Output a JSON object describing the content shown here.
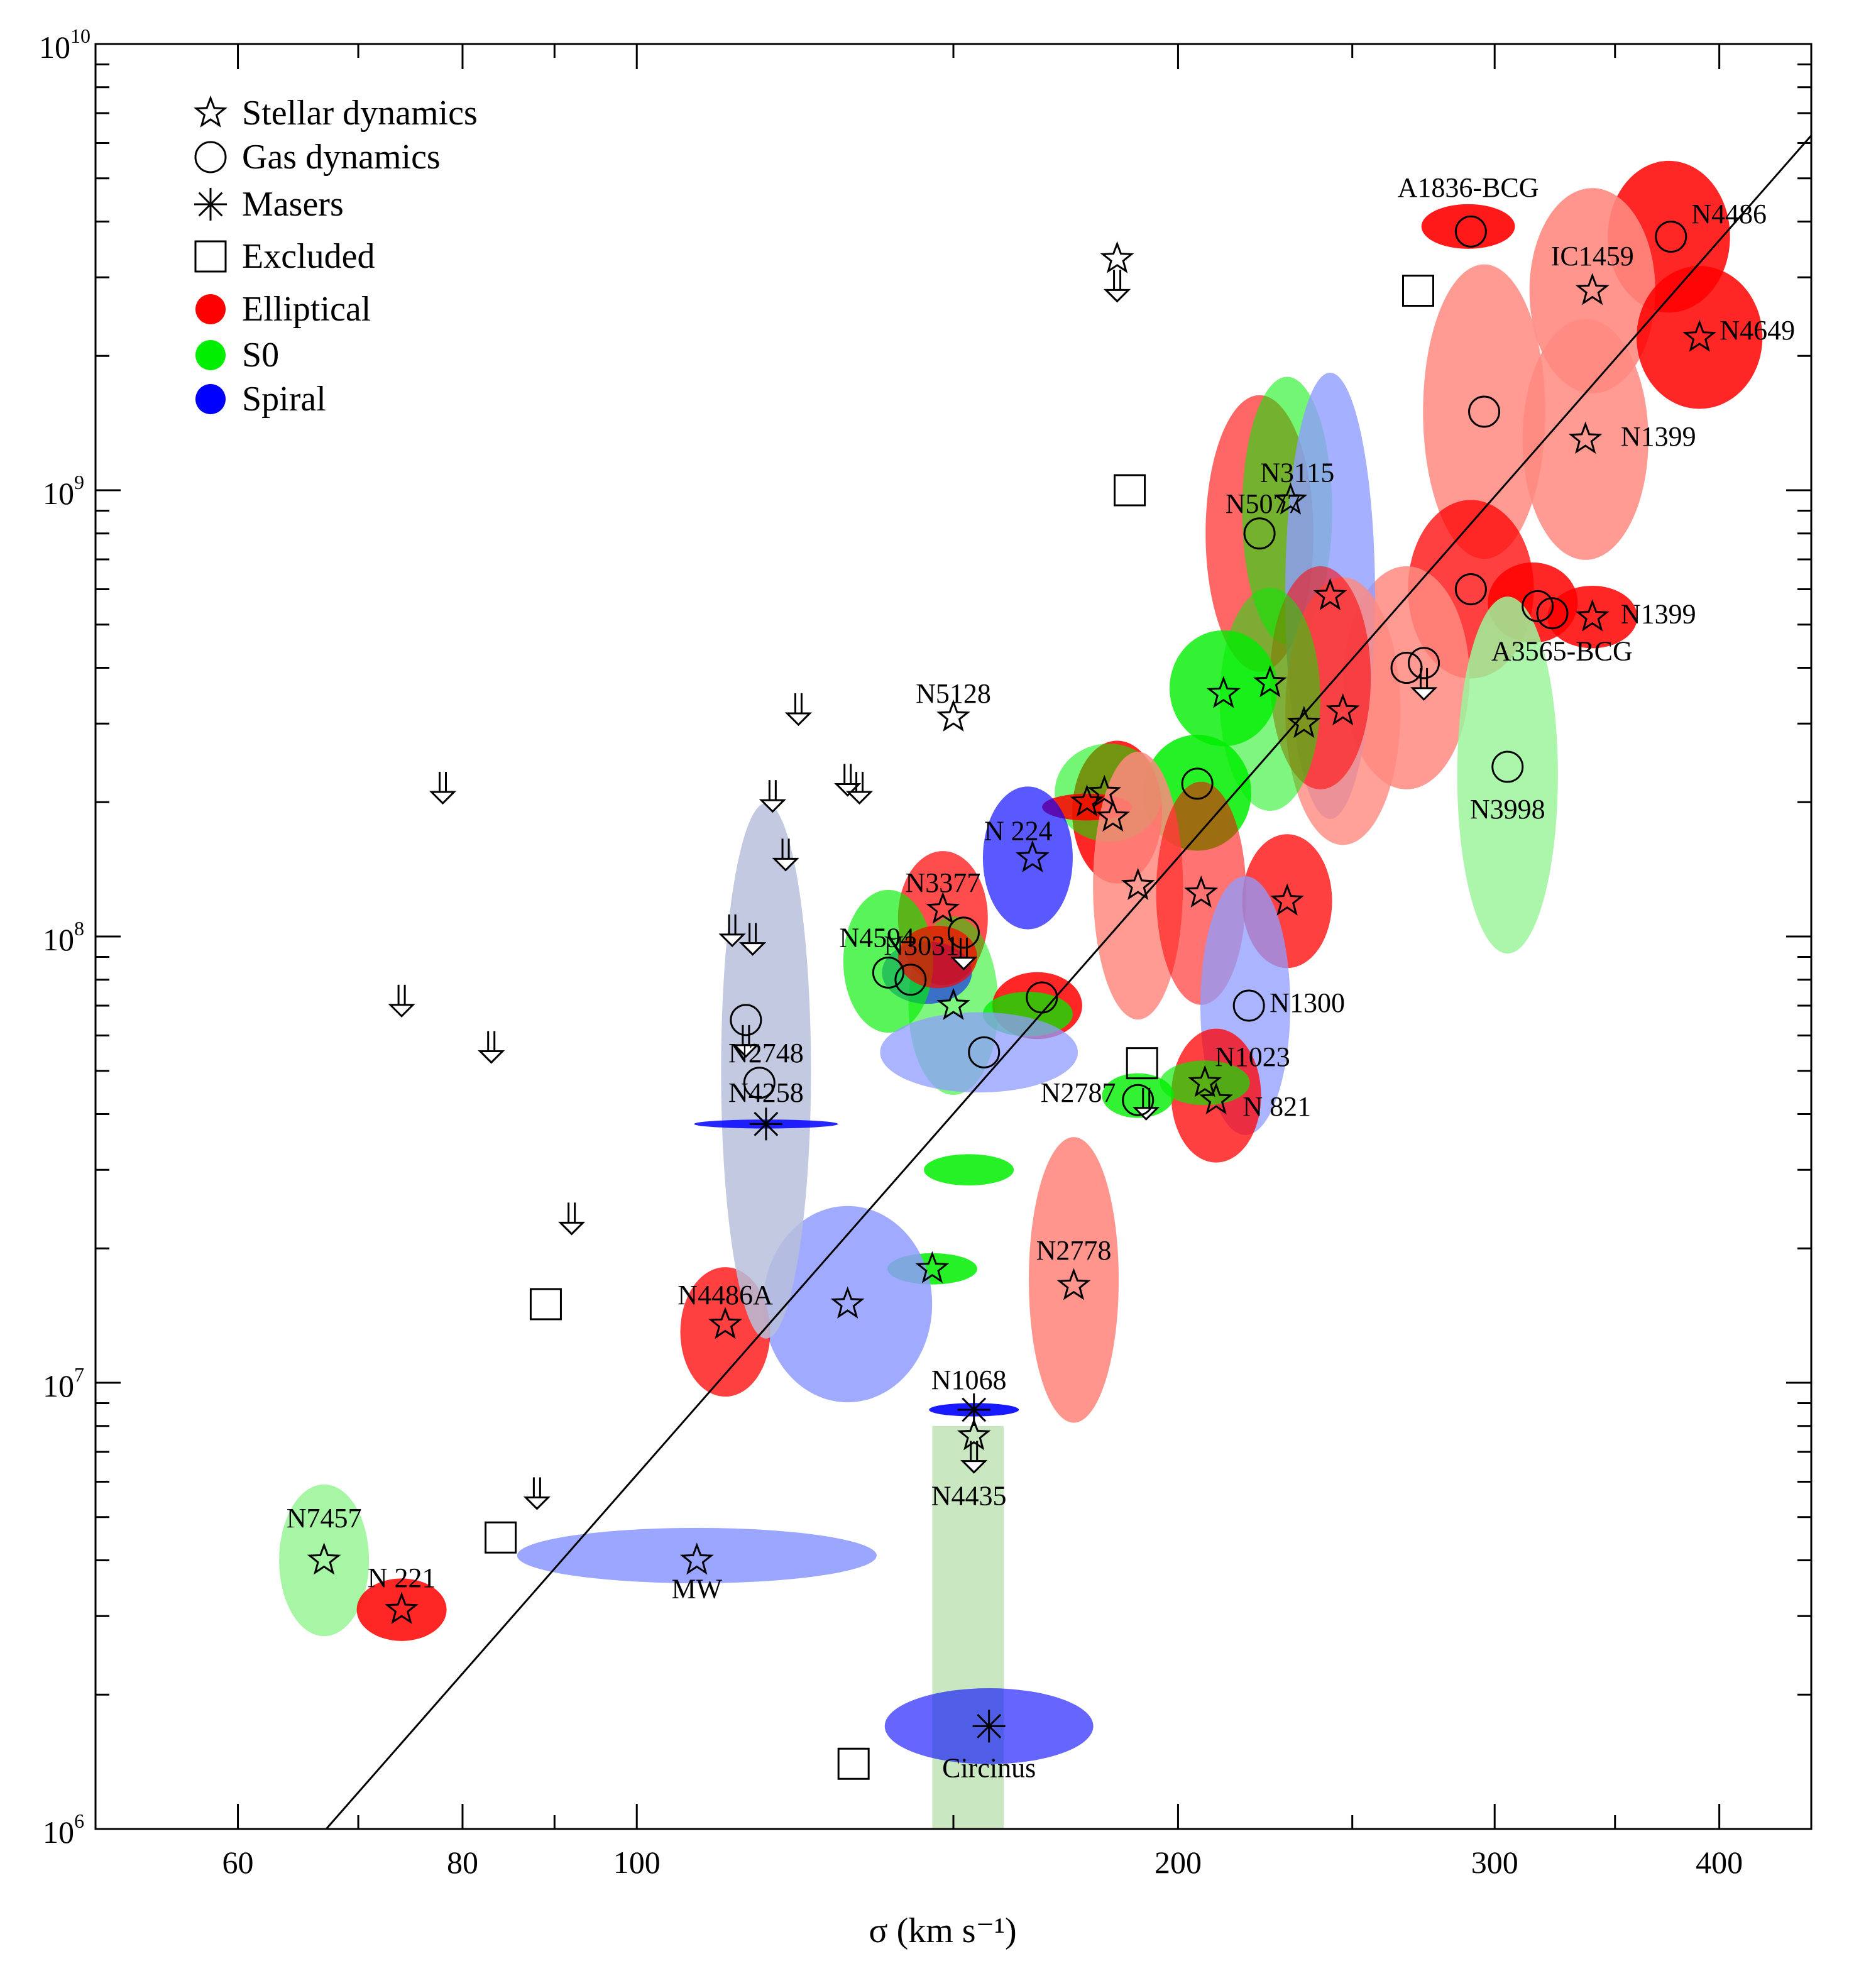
{
  "chart_data": {
    "type": "scatter",
    "title": "",
    "xlabel": "σ (km s⁻¹)",
    "ylabel": "",
    "x_scale": "log",
    "y_scale": "log",
    "xlim": [
      50,
      450
    ],
    "ylim": [
      1000000,
      10000000000
    ],
    "x_tick_labels": [
      {
        "value": 60,
        "label": "60"
      },
      {
        "value": 80,
        "label": "80"
      },
      {
        "value": 100,
        "label": "100"
      },
      {
        "value": 200,
        "label": "200"
      },
      {
        "value": 300,
        "label": "300"
      },
      {
        "value": 400,
        "label": "400"
      }
    ],
    "y_tick_labels": [
      {
        "value": 1000000,
        "base": "10",
        "exp": "6"
      },
      {
        "value": 10000000,
        "base": "10",
        "exp": "7"
      },
      {
        "value": 100000000,
        "base": "10",
        "exp": "8"
      },
      {
        "value": 1000000000,
        "base": "10",
        "exp": "9"
      },
      {
        "value": 10000000000,
        "base": "10",
        "exp": "10"
      }
    ],
    "legend": {
      "placement": "top-left",
      "entries": [
        {
          "marker": "star",
          "label": "Stellar dynamics"
        },
        {
          "marker": "circle",
          "label": "Gas dynamics"
        },
        {
          "marker": "asterisk",
          "label": "Masers"
        },
        {
          "marker": "square",
          "label": "Excluded"
        },
        {
          "marker": "dot",
          "color": "#ff0000",
          "label": "Elliptical"
        },
        {
          "marker": "dot",
          "color": "#00ee00",
          "label": "S0"
        },
        {
          "marker": "dot",
          "color": "#0000ff",
          "label": "Spiral"
        }
      ]
    },
    "colors": {
      "E": "#ff0000",
      "E_light": "#ff8a80",
      "S0": "#00ee00",
      "S0_light": "#9cf59c",
      "Sp": "#0000ff",
      "Sp_light": "#8f9cff",
      "Sp_pale": "#b7bfdc",
      "S0_band": "#c9e8c2"
    },
    "fit_line": {
      "x": [
        64,
        460
      ],
      "y": [
        800000,
        6900000000
      ]
    },
    "ellipses": [
      {
        "x": 290,
        "y": 3900000000,
        "sx": 0.026,
        "sy": 0.05,
        "color": "E",
        "opacity": 0.9
      },
      {
        "x": 375,
        "y": 3700000000,
        "sx": 0.034,
        "sy": 0.17,
        "color": "E",
        "opacity": 0.85
      },
      {
        "x": 340,
        "y": 2800000000,
        "sx": 0.035,
        "sy": 0.23,
        "color": "E_light",
        "opacity": 0.9
      },
      {
        "x": 390,
        "y": 2200000000,
        "sx": 0.035,
        "sy": 0.16,
        "color": "E",
        "opacity": 0.85
      },
      {
        "x": 296,
        "y": 1500000000,
        "sx": 0.034,
        "sy": 0.33,
        "color": "E_light",
        "opacity": 0.85
      },
      {
        "x": 337,
        "y": 1300000000,
        "sx": 0.035,
        "sy": 0.27,
        "color": "E_light",
        "opacity": 0.85
      },
      {
        "x": 291,
        "y": 600000000,
        "sx": 0.035,
        "sy": 0.2,
        "color": "E",
        "opacity": 0.75
      },
      {
        "x": 315,
        "y": 560000000,
        "sx": 0.025,
        "sy": 0.09,
        "color": "E",
        "opacity": 0.85
      },
      {
        "x": 340,
        "y": 520000000,
        "sx": 0.025,
        "sy": 0.07,
        "color": "E",
        "opacity": 0.85
      },
      {
        "x": 268,
        "y": 380000000,
        "sx": 0.035,
        "sy": 0.25,
        "color": "E_light",
        "opacity": 0.85
      },
      {
        "x": 305,
        "y": 230000000,
        "sx": 0.028,
        "sy": 0.4,
        "color": "S0_light",
        "opacity": 0.85
      },
      {
        "x": 222,
        "y": 800000000,
        "sx": 0.03,
        "sy": 0.31,
        "color": "E",
        "opacity": 0.6
      },
      {
        "x": 230,
        "y": 900000000,
        "sx": 0.025,
        "sy": 0.3,
        "color": "S0",
        "opacity": 0.55
      },
      {
        "x": 243,
        "y": 580000000,
        "sx": 0.025,
        "sy": 0.5,
        "color": "Sp_light",
        "opacity": 0.8
      },
      {
        "x": 247,
        "y": 320000000,
        "sx": 0.032,
        "sy": 0.3,
        "color": "E_light",
        "opacity": 0.8
      },
      {
        "x": 240,
        "y": 380000000,
        "sx": 0.028,
        "sy": 0.25,
        "color": "E",
        "opacity": 0.55
      },
      {
        "x": 225,
        "y": 340000000,
        "sx": 0.028,
        "sy": 0.25,
        "color": "S0",
        "opacity": 0.5
      },
      {
        "x": 212,
        "y": 360000000,
        "sx": 0.03,
        "sy": 0.13,
        "color": "S0",
        "opacity": 0.8
      },
      {
        "x": 205,
        "y": 210000000,
        "sx": 0.03,
        "sy": 0.13,
        "color": "S0",
        "opacity": 0.85
      },
      {
        "x": 185,
        "y": 190000000,
        "sx": 0.025,
        "sy": 0.16,
        "color": "E",
        "opacity": 0.85
      },
      {
        "x": 183,
        "y": 210000000,
        "sx": 0.03,
        "sy": 0.11,
        "color": "S0",
        "opacity": 0.55
      },
      {
        "x": 178,
        "y": 195000000,
        "sx": 0.025,
        "sy": 0.03,
        "color": "E",
        "opacity": 0.85
      },
      {
        "x": 190,
        "y": 130000000,
        "sx": 0.025,
        "sy": 0.3,
        "color": "E_light",
        "opacity": 0.85
      },
      {
        "x": 206,
        "y": 125000000,
        "sx": 0.025,
        "sy": 0.25,
        "color": "E",
        "opacity": 0.55
      },
      {
        "x": 230,
        "y": 120000000,
        "sx": 0.025,
        "sy": 0.15,
        "color": "E",
        "opacity": 0.75
      },
      {
        "x": 218,
        "y": 70000000,
        "sx": 0.025,
        "sy": 0.29,
        "color": "Sp_light",
        "opacity": 0.75
      },
      {
        "x": 210,
        "y": 44000000,
        "sx": 0.025,
        "sy": 0.15,
        "color": "E",
        "opacity": 0.75
      },
      {
        "x": 207,
        "y": 47000000,
        "sx": 0.025,
        "sy": 0.05,
        "color": "S0",
        "opacity": 0.65
      },
      {
        "x": 190,
        "y": 44000000,
        "sx": 0.02,
        "sy": 0.05,
        "color": "S0",
        "opacity": 0.8
      },
      {
        "x": 165,
        "y": 150000000,
        "sx": 0.025,
        "sy": 0.16,
        "color": "Sp",
        "opacity": 0.65
      },
      {
        "x": 148,
        "y": 110000000,
        "sx": 0.025,
        "sy": 0.15,
        "color": "E",
        "opacity": 0.7
      },
      {
        "x": 150,
        "y": 70000000,
        "sx": 0.025,
        "sy": 0.2,
        "color": "S0",
        "opacity": 0.5
      },
      {
        "x": 145,
        "y": 83000000,
        "sx": 0.025,
        "sy": 0.07,
        "color": "Sp",
        "opacity": 0.55
      },
      {
        "x": 138,
        "y": 88000000,
        "sx": 0.025,
        "sy": 0.16,
        "color": "S0",
        "opacity": 0.65
      },
      {
        "x": 147,
        "y": 90000000,
        "sx": 0.022,
        "sy": 0.07,
        "color": "E",
        "opacity": 0.7
      },
      {
        "x": 167,
        "y": 70000000,
        "sx": 0.025,
        "sy": 0.075,
        "color": "E",
        "opacity": 0.85
      },
      {
        "x": 165,
        "y": 67000000,
        "sx": 0.025,
        "sy": 0.05,
        "color": "S0",
        "opacity": 0.75
      },
      {
        "x": 155,
        "y": 55000000,
        "sx": 0.055,
        "sy": 0.09,
        "color": "Sp_light",
        "opacity": 0.75
      },
      {
        "x": 153,
        "y": 30000000,
        "sx": 0.025,
        "sy": 0.035,
        "color": "S0",
        "opacity": 0.85
      },
      {
        "x": 146,
        "y": 18000000,
        "sx": 0.025,
        "sy": 0.035,
        "color": "S0",
        "opacity": 0.85
      },
      {
        "x": 175,
        "y": 17000000,
        "sx": 0.025,
        "sy": 0.32,
        "color": "E_light",
        "opacity": 0.9
      },
      {
        "x": 131,
        "y": 15000000,
        "sx": 0.047,
        "sy": 0.22,
        "color": "Sp_light",
        "opacity": 0.85
      },
      {
        "x": 112,
        "y": 13000000,
        "sx": 0.025,
        "sy": 0.145,
        "color": "E",
        "opacity": 0.75
      },
      {
        "x": 118,
        "y": 50000000,
        "sx": 0.025,
        "sy": 0.6,
        "color": "Sp_pale",
        "opacity": 0.85
      },
      {
        "x": 118,
        "y": 38000000,
        "sx": 0.04,
        "sy": 0.01,
        "color": "Sp",
        "opacity": 0.85
      },
      {
        "x": 154,
        "y": 8700000,
        "sx": 0.025,
        "sy": 0.015,
        "color": "Sp",
        "opacity": 0.9
      },
      {
        "x": 108,
        "y": 4100000,
        "sx": 0.1,
        "sy": 0.062,
        "color": "Sp_light",
        "opacity": 0.9
      },
      {
        "x": 67,
        "y": 4000000,
        "sx": 0.025,
        "sy": 0.17,
        "color": "S0_light",
        "opacity": 0.9
      },
      {
        "x": 74,
        "y": 3100000,
        "sx": 0.025,
        "sy": 0.07,
        "color": "E",
        "opacity": 0.85
      },
      {
        "x": 157,
        "y": 1700000,
        "sx": 0.058,
        "sy": 0.085,
        "color": "Sp",
        "opacity": 0.6
      }
    ],
    "band": {
      "x0": 146,
      "x1": 160,
      "y0": 1000000,
      "y1": 8000000,
      "color": "S0_band"
    },
    "stars": [
      {
        "x": 185,
        "y": 3300000000
      },
      {
        "x": 340,
        "y": 2800000000
      },
      {
        "x": 390,
        "y": 2200000000
      },
      {
        "x": 337,
        "y": 1300000000
      },
      {
        "x": 231,
        "y": 950000000
      },
      {
        "x": 243,
        "y": 580000000
      },
      {
        "x": 340,
        "y": 520000000
      },
      {
        "x": 212,
        "y": 350000000
      },
      {
        "x": 225,
        "y": 370000000
      },
      {
        "x": 235,
        "y": 300000000
      },
      {
        "x": 247,
        "y": 320000000
      },
      {
        "x": 150,
        "y": 310000000
      },
      {
        "x": 182,
        "y": 210000000
      },
      {
        "x": 178,
        "y": 200000000
      },
      {
        "x": 184,
        "y": 185000000
      },
      {
        "x": 166,
        "y": 150000000
      },
      {
        "x": 190,
        "y": 130000000
      },
      {
        "x": 206,
        "y": 125000000
      },
      {
        "x": 230,
        "y": 120000000
      },
      {
        "x": 148,
        "y": 115000000
      },
      {
        "x": 150,
        "y": 70000000
      },
      {
        "x": 207,
        "y": 47000000
      },
      {
        "x": 210,
        "y": 43000000
      },
      {
        "x": 175,
        "y": 16500000
      },
      {
        "x": 131,
        "y": 15000000
      },
      {
        "x": 146,
        "y": 18000000
      },
      {
        "x": 112,
        "y": 13500000
      },
      {
        "x": 108,
        "y": 4000000
      },
      {
        "x": 67,
        "y": 4000000
      },
      {
        "x": 74,
        "y": 3100000
      },
      {
        "x": 154,
        "y": 7600000
      }
    ],
    "circles": [
      {
        "x": 291,
        "y": 3800000000
      },
      {
        "x": 376,
        "y": 3700000000
      },
      {
        "x": 296,
        "y": 1500000000
      },
      {
        "x": 222,
        "y": 800000000
      },
      {
        "x": 291,
        "y": 600000000
      },
      {
        "x": 317,
        "y": 550000000
      },
      {
        "x": 323,
        "y": 530000000
      },
      {
        "x": 268,
        "y": 400000000
      },
      {
        "x": 274,
        "y": 410000000
      },
      {
        "x": 305,
        "y": 240000000
      },
      {
        "x": 205,
        "y": 220000000
      },
      {
        "x": 219,
        "y": 70000000
      },
      {
        "x": 168,
        "y": 73000000
      },
      {
        "x": 138,
        "y": 83000000
      },
      {
        "x": 142,
        "y": 80000000
      },
      {
        "x": 156,
        "y": 55000000
      },
      {
        "x": 190,
        "y": 43000000
      },
      {
        "x": 117,
        "y": 47000000
      },
      {
        "x": 115,
        "y": 65000000
      },
      {
        "x": 152,
        "y": 102000000
      }
    ],
    "upper_limits": [
      {
        "x": 185,
        "y": 3200000000
      },
      {
        "x": 123,
        "y": 360000000
      },
      {
        "x": 78,
        "y": 240000000
      },
      {
        "x": 119,
        "y": 230000000
      },
      {
        "x": 131,
        "y": 250000000
      },
      {
        "x": 133,
        "y": 240000000
      },
      {
        "x": 121,
        "y": 170000000
      },
      {
        "x": 113,
        "y": 115000000
      },
      {
        "x": 116,
        "y": 110000000
      },
      {
        "x": 152,
        "y": 102000000
      },
      {
        "x": 74,
        "y": 80000000
      },
      {
        "x": 83,
        "y": 63000000
      },
      {
        "x": 115,
        "y": 65000000
      },
      {
        "x": 92,
        "y": 26000000
      },
      {
        "x": 88,
        "y": 6300000
      },
      {
        "x": 274,
        "y": 410000000
      },
      {
        "x": 192,
        "y": 47000000
      },
      {
        "x": 154,
        "y": 7600000
      }
    ],
    "asterisks": [
      {
        "x": 118,
        "y": 38000000
      },
      {
        "x": 154,
        "y": 8700000
      },
      {
        "x": 157,
        "y": 1700000
      }
    ],
    "squares": [
      {
        "x": 272,
        "y": 2800000000
      },
      {
        "x": 188,
        "y": 1000000000
      },
      {
        "x": 191,
        "y": 52000000
      },
      {
        "x": 89,
        "y": 15000000
      },
      {
        "x": 84,
        "y": 4500000
      },
      {
        "x": 132,
        "y": 1400000
      }
    ],
    "labels": [
      {
        "text": "A1836-BCG",
        "x": 290,
        "y": 4700000000
      },
      {
        "text": "N4486",
        "x": 405,
        "y": 4100000000
      },
      {
        "text": "IC1459",
        "x": 340,
        "y": 3300000000
      },
      {
        "text": "N4649",
        "x": 420,
        "y": 2250000000
      },
      {
        "text": "N1399",
        "x": 370,
        "y": 1300000000
      },
      {
        "text": "N3115",
        "x": 233,
        "y": 1080000000
      },
      {
        "text": "N5077",
        "x": 223,
        "y": 920000000
      },
      {
        "text": "N1399",
        "x": 370,
        "y": 520000000
      },
      {
        "text": "A3565-BCG",
        "x": 327,
        "y": 430000000
      },
      {
        "text": "N3998",
        "x": 305,
        "y": 190000000
      },
      {
        "text": "N5128",
        "x": 150,
        "y": 345000000
      },
      {
        "text": "N 224",
        "x": 163,
        "y": 170000000
      },
      {
        "text": "N3377",
        "x": 148,
        "y": 130000000
      },
      {
        "text": "N4594",
        "x": 136,
        "y": 98000000
      },
      {
        "text": "N3031",
        "x": 144,
        "y": 94000000
      },
      {
        "text": "N1300",
        "x": 236,
        "y": 70000000
      },
      {
        "text": "N2748",
        "x": 118,
        "y": 54000000
      },
      {
        "text": "N1023",
        "x": 220,
        "y": 53000000
      },
      {
        "text": "N4258",
        "x": 118,
        "y": 44000000
      },
      {
        "text": "N2787",
        "x": 176,
        "y": 44000000
      },
      {
        "text": "N 821",
        "x": 227,
        "y": 41000000
      },
      {
        "text": "N2778",
        "x": 175,
        "y": 19500000
      },
      {
        "text": "N4486A",
        "x": 112,
        "y": 15500000
      },
      {
        "text": "N1068",
        "x": 153,
        "y": 10000000
      },
      {
        "text": "N4435",
        "x": 153,
        "y": 5500000
      },
      {
        "text": "N7457",
        "x": 67,
        "y": 4900000
      },
      {
        "text": "N 221",
        "x": 74,
        "y": 3600000
      },
      {
        "text": "MW",
        "x": 108,
        "y": 3400000
      },
      {
        "text": "Circinus",
        "x": 157,
        "y": 1350000
      }
    ]
  }
}
